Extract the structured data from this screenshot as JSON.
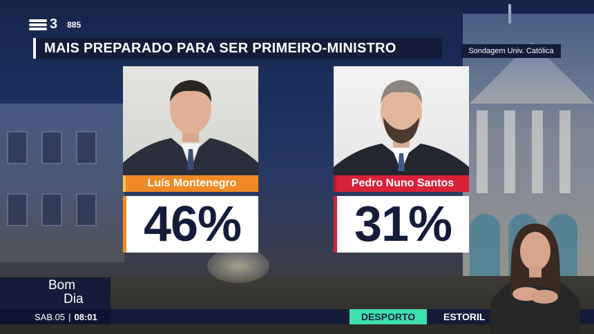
{
  "channel": {
    "logo_number": "3",
    "counter": "885"
  },
  "headline": "MAIS PREPARADO PARA SER PRIMEIRO-MINISTRO",
  "source": "Sondagem Univ. Católica",
  "candidates": [
    {
      "name": "Luís Montenegro",
      "percent": "46%",
      "color": "#f08a24"
    },
    {
      "name": "Pedro Nuno Santos",
      "percent": "31%",
      "color": "#d9213a"
    }
  ],
  "program": {
    "line1": "Bom",
    "line2": "Dia"
  },
  "clock": {
    "date": "SAB.05",
    "separator": "|",
    "time": "08:01"
  },
  "ticker": {
    "category": "DESPORTO",
    "text": "ESTORIL"
  },
  "colors": {
    "navy": "#141c3a",
    "ticker_tag": "#3fe0b0"
  }
}
